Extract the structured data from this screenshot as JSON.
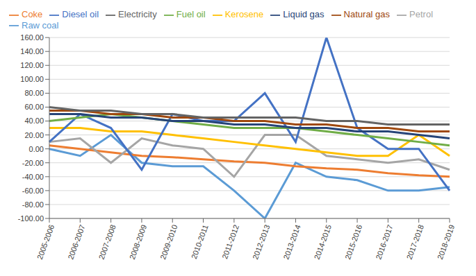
{
  "chart_data": {
    "type": "line",
    "categories": [
      "2005-2006",
      "2006-2007",
      "2007-2008",
      "2008-2009",
      "2009-2010",
      "2010-2011",
      "2011-2012",
      "2012-2013",
      "2013-2014",
      "2014-2015",
      "2015-2016",
      "2016-2017",
      "2017-2018",
      "2018-2019"
    ],
    "series": [
      {
        "name": "Raw coal",
        "color": "#5B9BD5",
        "values": [
          0,
          -10,
          20,
          -20,
          -25,
          -25,
          -60,
          -100,
          -20,
          -40,
          -45,
          -60,
          -60,
          -55
        ]
      },
      {
        "name": "Coke",
        "color": "#ED7D31",
        "values": [
          5,
          0,
          -5,
          -10,
          -12,
          -15,
          -18,
          -20,
          -25,
          -28,
          -30,
          -35,
          -38,
          -40
        ]
      },
      {
        "name": "Petrol",
        "color": "#A5A5A5",
        "values": [
          10,
          15,
          -20,
          15,
          5,
          0,
          -40,
          20,
          20,
          -10,
          -15,
          -20,
          -15,
          -30
        ]
      },
      {
        "name": "Kerosene",
        "color": "#FFC000",
        "values": [
          30,
          30,
          25,
          25,
          20,
          15,
          10,
          5,
          0,
          -5,
          -10,
          -10,
          20,
          -10
        ]
      },
      {
        "name": "Diesel oil",
        "color": "#4472C4",
        "values": [
          10,
          50,
          30,
          -30,
          50,
          40,
          40,
          80,
          10,
          160,
          30,
          0,
          0,
          -60
        ]
      },
      {
        "name": "Fuel oil",
        "color": "#70AD47",
        "values": [
          40,
          45,
          50,
          45,
          40,
          35,
          30,
          30,
          30,
          25,
          20,
          15,
          10,
          5
        ]
      },
      {
        "name": "Liquid gas",
        "color": "#264478",
        "values": [
          50,
          50,
          45,
          45,
          40,
          40,
          35,
          35,
          30,
          30,
          25,
          25,
          20,
          15
        ]
      },
      {
        "name": "Natural gas",
        "color": "#9E480E",
        "values": [
          55,
          55,
          50,
          50,
          45,
          45,
          40,
          40,
          35,
          35,
          30,
          30,
          25,
          25
        ]
      },
      {
        "name": "Electricity",
        "color": "#636363",
        "values": [
          60,
          55,
          55,
          50,
          50,
          45,
          45,
          45,
          45,
          40,
          40,
          35,
          35,
          35
        ]
      }
    ],
    "ylim": [
      -100,
      160
    ],
    "yticks": [
      {
        "value": -100,
        "label": "-100.00"
      },
      {
        "value": -80,
        "label": "-80.00"
      },
      {
        "value": -60,
        "label": "-60.00"
      },
      {
        "value": -40,
        "label": "-40.00"
      },
      {
        "value": -20,
        "label": "-20.00"
      },
      {
        "value": 0,
        "label": "0.00"
      },
      {
        "value": 20,
        "label": "20.00"
      },
      {
        "value": 40,
        "label": "40.00"
      },
      {
        "value": 60,
        "label": "60.00"
      },
      {
        "value": 80,
        "label": "80.00"
      },
      {
        "value": 100,
        "label": "100.00"
      },
      {
        "value": 120,
        "label": "120.00"
      },
      {
        "value": 140,
        "label": "140.00"
      },
      {
        "value": 160,
        "label": "160.00"
      }
    ],
    "grid": true,
    "legend": "top"
  }
}
